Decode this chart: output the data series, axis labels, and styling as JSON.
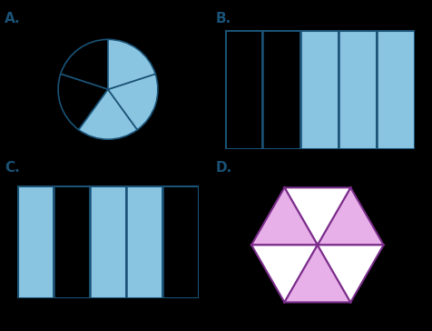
{
  "bg_color": "#000000",
  "label_color": "#1a5276",
  "label_fontsize": 11,
  "label_fontweight": "bold",
  "A_label": "A.",
  "A_pie_colors": [
    "#000000",
    "#000000",
    "#89c4e1",
    "#89c4e1",
    "#89c4e1"
  ],
  "A_edge_color": "#1a5276",
  "A_linewidth": 1.2,
  "B_label": "B.",
  "B_rect_colors": [
    "#000000",
    "#000000",
    "#89c4e1",
    "#89c4e1",
    "#89c4e1"
  ],
  "B_edge_color": "#1a5276",
  "C_label": "C.",
  "C_rect_colors": [
    "#89c4e1",
    "#000000",
    "#89c4e1",
    "#89c4e1",
    "#000000"
  ],
  "C_edge_color": "#1a5276",
  "D_label": "D.",
  "D_hex_edge": "#7b2d8b",
  "D_tri_colors": [
    "#e8b0e8",
    "#ffffff",
    "#e8b0e8",
    "#ffffff",
    "#e8b0e8",
    "#ffffff"
  ]
}
